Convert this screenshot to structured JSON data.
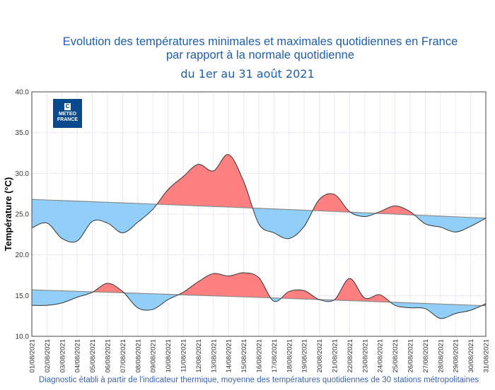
{
  "title_line1": "Evolution des températures minimales et maximales quotidiennes en France",
  "title_line2": "par rapport à la normale quotidienne",
  "subtitle": "du 1er au 31 août 2021",
  "footer": "Diagnostic établi à partir de l'indicateur thermique, moyenne des températures quotidiennes de 30 stations métropolitaines",
  "logo": "METEO FRANCE",
  "logo_line1": "METEO",
  "logo_line2": "FRANCE",
  "colors": {
    "above": "#ff8080",
    "below": "#92cff8",
    "title": "#1f5ea8"
  },
  "chart_data": {
    "type": "area",
    "ylabel": "Température (°C)",
    "ylim": [
      10,
      40
    ],
    "yticks": [
      "10.0",
      "15.0",
      "20.0",
      "25.0",
      "30.0",
      "35.0",
      "40.0"
    ],
    "grid": true,
    "categories": [
      "01/08/2021",
      "02/08/2021",
      "03/08/2021",
      "04/08/2021",
      "05/08/2021",
      "06/08/2021",
      "07/08/2021",
      "08/08/2021",
      "09/08/2021",
      "10/08/2021",
      "11/08/2021",
      "12/08/2021",
      "13/08/2021",
      "14/08/2021",
      "15/08/2021",
      "16/08/2021",
      "17/08/2021",
      "18/08/2021",
      "19/08/2021",
      "20/08/2021",
      "21/08/2021",
      "22/08/2021",
      "23/08/2021",
      "24/08/2021",
      "25/08/2021",
      "26/08/2021",
      "27/08/2021",
      "28/08/2021",
      "29/08/2021",
      "30/08/2021",
      "31/08/2021"
    ],
    "series": [
      {
        "key": "tmax",
        "values": [
          23.3,
          23.9,
          22.0,
          21.7,
          24.1,
          23.9,
          22.7,
          24.0,
          25.6,
          28.0,
          29.6,
          31.1,
          30.3,
          32.3,
          29.0,
          23.8,
          22.7,
          22.0,
          23.5,
          26.8,
          27.4,
          25.3,
          24.7,
          25.3,
          26.0,
          25.3,
          23.8,
          23.4,
          22.8,
          23.5,
          24.5
        ],
        "normal_start": 26.8,
        "normal_end": 24.5
      },
      {
        "key": "tmin",
        "values": [
          13.8,
          13.8,
          14.1,
          14.8,
          15.4,
          16.5,
          15.5,
          13.5,
          13.3,
          14.5,
          15.4,
          16.7,
          17.7,
          17.4,
          17.8,
          17.2,
          14.3,
          15.5,
          15.6,
          14.5,
          14.5,
          17.1,
          14.7,
          15.1,
          13.8,
          13.5,
          13.4,
          12.2,
          12.8,
          13.2,
          14.0
        ],
        "normal_start": 15.7,
        "normal_end": 13.75
      }
    ]
  }
}
